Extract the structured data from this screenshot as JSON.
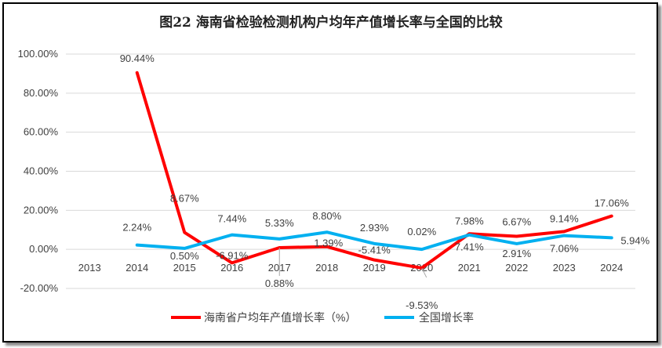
{
  "chart_data": {
    "type": "line",
    "title": "图22  海南省检验检测机构户均年产值增长率与全国的比较",
    "categories": [
      "2013",
      "2014",
      "2015",
      "2016",
      "2017",
      "2018",
      "2019",
      "2020",
      "2021",
      "2022",
      "2023",
      "2024"
    ],
    "ylim": [
      -20,
      100
    ],
    "yticks": [
      "-20.00%",
      "0.00%",
      "20.00%",
      "40.00%",
      "60.00%",
      "80.00%",
      "100.00%"
    ],
    "grid": true,
    "legend": "bottom",
    "series": [
      {
        "name": "海南省户均年产值增长率（%）",
        "color": "#ff0000",
        "values": [
          null,
          90.44,
          8.67,
          -6.91,
          0.88,
          1.39,
          -5.41,
          -9.53,
          7.98,
          6.67,
          9.14,
          17.06
        ],
        "labels": [
          "",
          "90.44%",
          "8.67%",
          "-6.91%",
          "0.88%",
          "1.39%",
          "-5.41%",
          "-9.53%",
          "7.98%",
          "6.67%",
          "9.14%",
          "17.06%"
        ]
      },
      {
        "name": "全国增长率",
        "color": "#00b0f0",
        "values": [
          null,
          2.24,
          0.5,
          7.44,
          5.33,
          8.8,
          2.93,
          0.02,
          7.41,
          2.91,
          7.06,
          5.94
        ],
        "labels": [
          "",
          "2.24%",
          "0.50%",
          "7.44%",
          "5.33%",
          "8.80%",
          "2.93%",
          "0.02%",
          "7.41%",
          "2.91%",
          "7.06%",
          "5.94%"
        ]
      }
    ]
  }
}
